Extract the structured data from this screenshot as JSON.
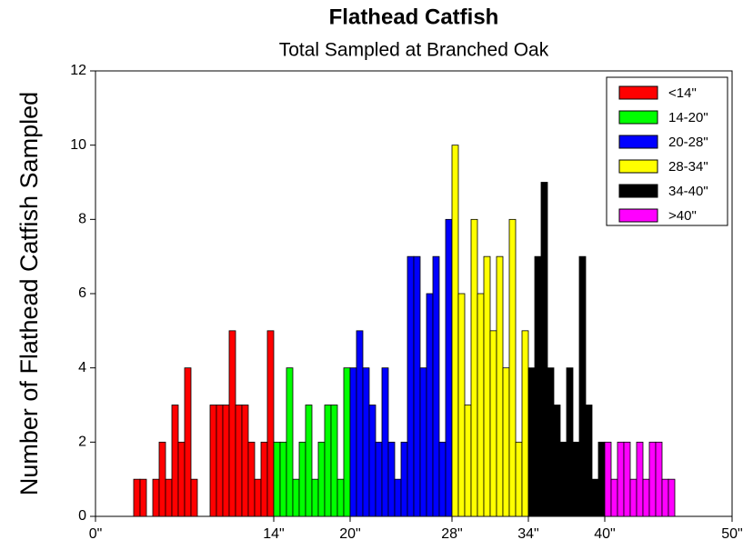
{
  "chart_data": {
    "type": "histogram",
    "title": "Flathead Catfish",
    "subtitle": "Total Sampled at Branched Oak",
    "y_label": "Number of Flathead Catfish Sampled",
    "xlim": [
      0,
      50
    ],
    "xticks": [
      {
        "value": 0,
        "label": "0\""
      },
      {
        "value": 14,
        "label": "14\""
      },
      {
        "value": 20,
        "label": "20\""
      },
      {
        "value": 28,
        "label": "28\""
      },
      {
        "value": 34,
        "label": "34\""
      },
      {
        "value": 40,
        "label": "40\""
      },
      {
        "value": 50,
        "label": "50\""
      }
    ],
    "ylim": [
      0,
      12
    ],
    "yticks": [
      0,
      2,
      4,
      6,
      8,
      10,
      12
    ],
    "legend": "upper right",
    "series": [
      {
        "name": "<14\"",
        "color": "#ff0000",
        "bins": [
          3,
          3.5,
          4,
          4.5,
          5,
          5.5,
          6,
          6.5,
          7,
          7.5,
          8,
          8.5,
          9,
          9.5,
          10,
          10.5,
          11,
          11.5,
          12,
          12.5,
          13,
          13.5,
          14
        ],
        "values": [
          1,
          1,
          0,
          1,
          2,
          1,
          3,
          2,
          4,
          1,
          0,
          0,
          3,
          3,
          3,
          5,
          3,
          3,
          2,
          1,
          2,
          5
        ]
      },
      {
        "name": "14-20\"",
        "color": "#00ff00",
        "bins": [
          14,
          14.5,
          15,
          15.5,
          16,
          16.5,
          17,
          17.5,
          18,
          18.5,
          19,
          19.5,
          20
        ],
        "values": [
          2,
          2,
          4,
          1,
          2,
          3,
          1,
          2,
          3,
          3,
          1,
          4
        ]
      },
      {
        "name": "20-28\"",
        "color": "#0000ff",
        "bins": [
          20,
          20.5,
          21,
          21.5,
          22,
          22.5,
          23,
          23.5,
          24,
          24.5,
          25,
          25.5,
          26,
          26.5,
          27,
          27.5,
          28
        ],
        "values": [
          4,
          5,
          4,
          3,
          2,
          4,
          2,
          1,
          2,
          7,
          7,
          4,
          6,
          7,
          2,
          8
        ]
      },
      {
        "name": "28-34\"",
        "color": "#ffff00",
        "bins": [
          28,
          28.5,
          29,
          29.5,
          30,
          30.5,
          31,
          31.5,
          32,
          32.5,
          33,
          33.5,
          34
        ],
        "values": [
          10,
          6,
          3,
          8,
          6,
          7,
          5,
          7,
          4,
          8,
          2,
          5
        ]
      },
      {
        "name": "34-40\"",
        "color": "#000000",
        "bins": [
          34,
          34.5,
          35,
          35.5,
          36,
          36.5,
          37,
          37.5,
          38,
          38.5,
          39,
          39.5,
          40
        ],
        "values": [
          4,
          7,
          9,
          4,
          3,
          2,
          4,
          2,
          7,
          3,
          1,
          2
        ]
      },
      {
        "name": ">40\"",
        "color": "#ff00ff",
        "bins": [
          40,
          40.5,
          41,
          41.5,
          42,
          42.5,
          43,
          43.5,
          44,
          44.5,
          45,
          45.5
        ],
        "values": [
          2,
          1,
          2,
          2,
          1,
          2,
          1,
          2,
          2,
          1,
          1
        ]
      }
    ]
  }
}
